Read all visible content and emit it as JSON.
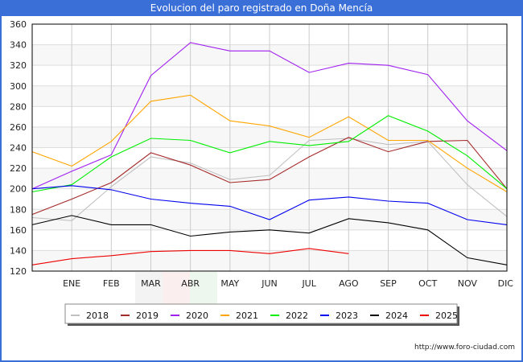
{
  "title": "Evolucion del paro registrado en Doña Mencía",
  "footer_url": "http://www.foro-ciudad.com",
  "chart_data": {
    "type": "line",
    "title": "Evolucion del paro registrado en Doña Mencía",
    "xlabel": "",
    "ylabel": "",
    "x": [
      "",
      "ENE",
      "FEB",
      "MAR",
      "ABR",
      "MAY",
      "JUN",
      "JUL",
      "AGO",
      "SEP",
      "OCT",
      "NOV",
      "DIC"
    ],
    "ylim": [
      120,
      360
    ],
    "yticks": [
      120,
      140,
      160,
      180,
      200,
      220,
      240,
      260,
      280,
      300,
      320,
      340,
      360
    ],
    "grid": true,
    "legend_position": "bottom",
    "series": [
      {
        "name": "2018",
        "color": "#c0c0c0",
        "values": [
          172,
          169,
          202,
          231,
          225,
          209,
          213,
          247,
          249,
          243,
          246,
          204,
          173
        ]
      },
      {
        "name": "2019",
        "color": "#a52a2a",
        "values": [
          175,
          190,
          206,
          235,
          223,
          206,
          209,
          231,
          250,
          236,
          246,
          247,
          200
        ]
      },
      {
        "name": "2020",
        "color": "#a020f0",
        "values": [
          200,
          217,
          233,
          310,
          342,
          334,
          334,
          313,
          322,
          320,
          311,
          266,
          237
        ]
      },
      {
        "name": "2021",
        "color": "#ffa500",
        "values": [
          236,
          222,
          246,
          285,
          291,
          266,
          261,
          250,
          270,
          247,
          247,
          220,
          197
        ]
      },
      {
        "name": "2022",
        "color": "#00ee00",
        "values": [
          197,
          204,
          231,
          249,
          247,
          235,
          246,
          242,
          246,
          271,
          256,
          232,
          200
        ]
      },
      {
        "name": "2023",
        "color": "#0000ee",
        "values": [
          200,
          203,
          199,
          190,
          186,
          183,
          170,
          189,
          192,
          188,
          186,
          170,
          165
        ]
      },
      {
        "name": "2024",
        "color": "#000000",
        "values": [
          165,
          174,
          165,
          165,
          154,
          158,
          160,
          157,
          171,
          167,
          160,
          133,
          126
        ]
      },
      {
        "name": "2025",
        "color": "#ee0000",
        "values": [
          126,
          132,
          135,
          139,
          140,
          140,
          137,
          142,
          137,
          null,
          null,
          null,
          null
        ]
      }
    ]
  }
}
